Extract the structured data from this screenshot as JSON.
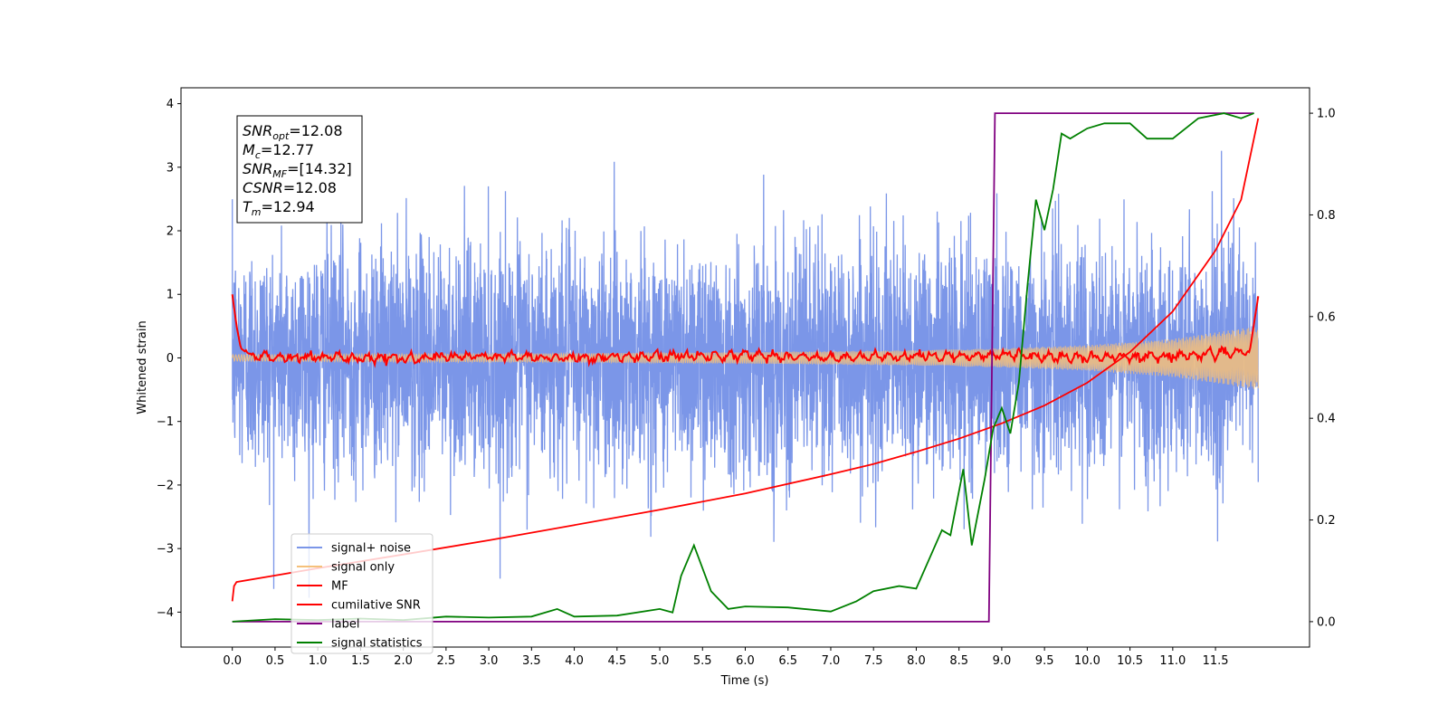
{
  "chart_data": {
    "type": "line",
    "xlabel": "Time (s)",
    "ylabel": "Whitened strain",
    "xlim": [
      -0.6,
      12.6
    ],
    "ylim": [
      -4.55,
      4.25
    ],
    "y2lim": [
      -0.05,
      1.05
    ],
    "x_ticks": [
      "0.0",
      "0.5",
      "1.0",
      "1.5",
      "2.0",
      "2.5",
      "3.0",
      "3.5",
      "4.0",
      "4.5",
      "5.0",
      "5.5",
      "6.0",
      "6.5",
      "7.0",
      "7.5",
      "8.0",
      "8.5",
      "9.0",
      "9.5",
      "10.0",
      "10.5",
      "11.0",
      "11.5"
    ],
    "y_ticks": [
      "4",
      "3",
      "2",
      "1",
      "0",
      "−1",
      "−2",
      "−3",
      "−4"
    ],
    "y2_ticks": [
      "1.0",
      "0.8",
      "0.6",
      "0.4",
      "0.2",
      "0.0"
    ],
    "annotation": [
      {
        "name": "SNR",
        "sub": "opt",
        "value": "=12.08"
      },
      {
        "name": "M",
        "sub": "c",
        "value": "=12.77"
      },
      {
        "name": "SNR",
        "sub": "MF",
        "value": "=[14.32]"
      },
      {
        "name": "CSNR",
        "sub": "",
        "value": "=12.08"
      },
      {
        "name": "T",
        "sub": "m",
        "value": "=12.94"
      }
    ],
    "series": [
      {
        "name": "signal+ noise",
        "color": "#7b96e8",
        "axis": "left",
        "description": "noise band approx ±1.5 with spikes up to ±3.5, t 0.0–12.0"
      },
      {
        "name": "signal only",
        "color": "#f5c07a",
        "axis": "left",
        "envelope": {
          "x": [
            0,
            2,
            4,
            6,
            8,
            9,
            10,
            11,
            12
          ],
          "amp": [
            0.05,
            0.06,
            0.07,
            0.09,
            0.12,
            0.15,
            0.2,
            0.3,
            0.5
          ]
        }
      },
      {
        "name": "MF",
        "color": "#ff0000",
        "axis": "left",
        "x": [
          0.0,
          0.05,
          0.1,
          0.2,
          0.5,
          1.0,
          2.0,
          3.0,
          4.0,
          5.0,
          6.0,
          7.0,
          8.0,
          9.0,
          10.0,
          11.0,
          11.9,
          12.0
        ],
        "y": [
          1.0,
          0.5,
          0.15,
          0.05,
          0.0,
          0.02,
          -0.01,
          0.03,
          0.0,
          0.02,
          0.05,
          0.0,
          0.02,
          0.05,
          0.0,
          0.03,
          0.1,
          0.97
        ]
      },
      {
        "name": "cumilative SNR",
        "color": "#ff0000",
        "axis": "right",
        "x": [
          0.0,
          0.02,
          0.05,
          1,
          2,
          3,
          4,
          5,
          6,
          7,
          7.5,
          8,
          8.5,
          9,
          9.5,
          10,
          10.5,
          11,
          11.5,
          11.8,
          12.0
        ],
        "y": [
          0.04,
          0.07,
          0.078,
          0.105,
          0.132,
          0.16,
          0.19,
          0.22,
          0.252,
          0.29,
          0.31,
          0.334,
          0.36,
          0.39,
          0.425,
          0.47,
          0.53,
          0.61,
          0.73,
          0.83,
          0.99
        ]
      },
      {
        "name": "label",
        "color": "#800080",
        "axis": "right",
        "x": [
          0.0,
          8.85,
          8.92,
          11.95
        ],
        "y": [
          0.0,
          0.0,
          1.0,
          1.0
        ]
      },
      {
        "name": "signal statistics",
        "color": "#008000",
        "axis": "right",
        "x": [
          0.0,
          0.5,
          1.0,
          1.5,
          2.0,
          2.5,
          3.0,
          3.5,
          3.8,
          4.0,
          4.5,
          5.0,
          5.15,
          5.25,
          5.4,
          5.6,
          5.8,
          6.0,
          6.5,
          7.0,
          7.3,
          7.5,
          7.8,
          8.0,
          8.3,
          8.4,
          8.55,
          8.65,
          8.8,
          8.9,
          9.0,
          9.1,
          9.2,
          9.3,
          9.4,
          9.5,
          9.6,
          9.7,
          9.8,
          10.0,
          10.2,
          10.5,
          10.7,
          11.0,
          11.3,
          11.6,
          11.8,
          11.95
        ],
        "y": [
          0.0,
          0.005,
          0.003,
          0.006,
          0.003,
          0.01,
          0.008,
          0.01,
          0.025,
          0.01,
          0.012,
          0.025,
          0.018,
          0.09,
          0.15,
          0.06,
          0.025,
          0.03,
          0.028,
          0.02,
          0.04,
          0.06,
          0.07,
          0.065,
          0.18,
          0.17,
          0.3,
          0.15,
          0.28,
          0.38,
          0.42,
          0.37,
          0.47,
          0.66,
          0.83,
          0.77,
          0.85,
          0.96,
          0.95,
          0.97,
          0.98,
          0.98,
          0.95,
          0.95,
          0.99,
          1.0,
          0.99,
          1.0
        ]
      }
    ],
    "legend_position": "lower left"
  }
}
